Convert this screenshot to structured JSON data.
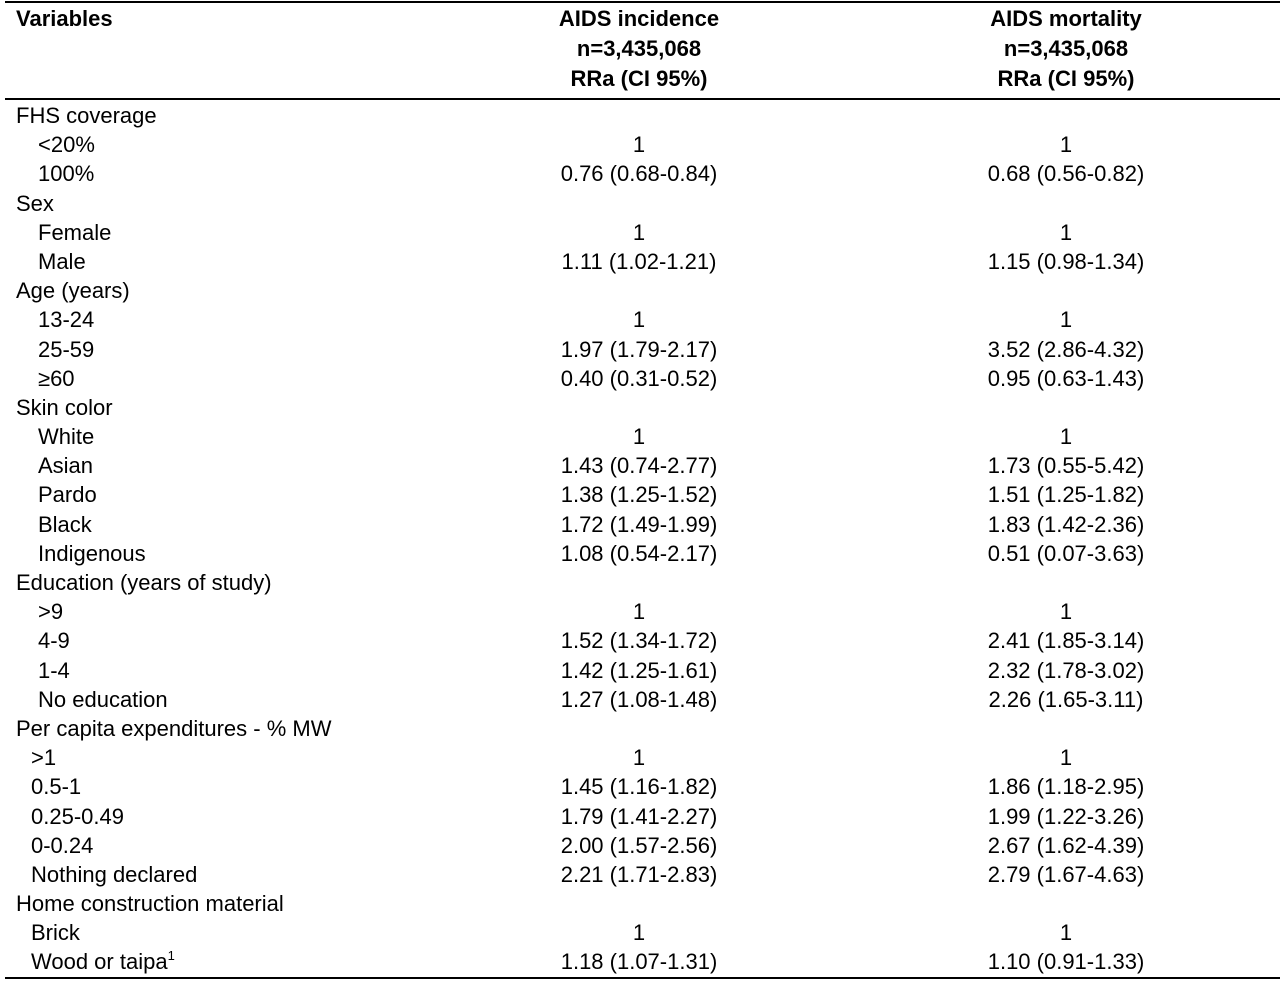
{
  "header": {
    "variables": "Variables",
    "incidence": [
      "AIDS incidence",
      "n=3,435,068",
      "RRa (CI 95%)"
    ],
    "mortality": [
      "AIDS mortality",
      "n=3,435,068",
      "RRa (CI 95%)"
    ]
  },
  "rows": [
    {
      "label": "FHS coverage",
      "level": 0,
      "inc": "",
      "mor": ""
    },
    {
      "label": "<20%",
      "level": 1,
      "inc": "1",
      "mor": "1"
    },
    {
      "label": "100%",
      "level": 1,
      "inc": "0.76 (0.68-0.84)",
      "mor": "0.68 (0.56-0.82)"
    },
    {
      "label": "Sex",
      "level": 0,
      "inc": "",
      "mor": ""
    },
    {
      "label": "Female",
      "level": 1,
      "inc": "1",
      "mor": "1"
    },
    {
      "label": "Male",
      "level": 1,
      "inc": "1.11 (1.02-1.21)",
      "mor": "1.15 (0.98-1.34)"
    },
    {
      "label": "Age (years)",
      "level": 0,
      "inc": "",
      "mor": ""
    },
    {
      "label": "13-24",
      "level": 1,
      "inc": "1",
      "mor": "1"
    },
    {
      "label": "25-59",
      "level": 1,
      "inc": "1.97 (1.79-2.17)",
      "mor": "3.52 (2.86-4.32)"
    },
    {
      "label": "≥60",
      "level": 1,
      "inc": "0.40 (0.31-0.52)",
      "mor": "0.95 (0.63-1.43)"
    },
    {
      "label": "Skin color",
      "level": 0,
      "inc": "",
      "mor": ""
    },
    {
      "label": "White",
      "level": 1,
      "inc": "1",
      "mor": "1"
    },
    {
      "label": "Asian",
      "level": 1,
      "inc": "1.43 (0.74-2.77)",
      "mor": "1.73 (0.55-5.42)"
    },
    {
      "label": "Pardo",
      "level": 1,
      "inc": "1.38 (1.25-1.52)",
      "mor": "1.51 (1.25-1.82)"
    },
    {
      "label": "Black",
      "level": 1,
      "inc": "1.72 (1.49-1.99)",
      "mor": "1.83 (1.42-2.36)"
    },
    {
      "label": "Indigenous",
      "level": 1,
      "inc": "1.08 (0.54-2.17)",
      "mor": "0.51 (0.07-3.63)"
    },
    {
      "label": "Education (years of study)",
      "level": 0,
      "inc": "",
      "mor": ""
    },
    {
      "label": ">9",
      "level": 1,
      "inc": "1",
      "mor": "1"
    },
    {
      "label": "4-9",
      "level": 1,
      "inc": "1.52 (1.34-1.72)",
      "mor": "2.41 (1.85-3.14)"
    },
    {
      "label": "1-4",
      "level": 1,
      "inc": "1.42 (1.25-1.61)",
      "mor": "2.32 (1.78-3.02)"
    },
    {
      "label": "No education",
      "level": 1,
      "inc": "1.27 (1.08-1.48)",
      "mor": "2.26 (1.65-3.11)"
    },
    {
      "label": "Per capita expenditures - % MW",
      "level": 0,
      "inc": "",
      "mor": ""
    },
    {
      "label": ">1",
      "level": 2,
      "inc": "1",
      "mor": "1"
    },
    {
      "label": "0.5-1",
      "level": 2,
      "inc": "1.45 (1.16-1.82)",
      "mor": "1.86 (1.18-2.95)"
    },
    {
      "label": "0.25-0.49",
      "level": 2,
      "inc": "1.79 (1.41-2.27)",
      "mor": "1.99 (1.22-3.26)"
    },
    {
      "label": "0-0.24",
      "level": 2,
      "inc": "2.00 (1.57-2.56)",
      "mor": "2.67 (1.62-4.39)"
    },
    {
      "label": "Nothing declared",
      "level": 2,
      "inc": "2.21 (1.71-2.83)",
      "mor": "2.79 (1.67-4.63)"
    },
    {
      "label": "Home construction material",
      "level": 0,
      "inc": "",
      "mor": ""
    },
    {
      "label": "Brick",
      "level": 2,
      "inc": "1",
      "mor": "1"
    },
    {
      "label": "Wood or taipa",
      "sup": "1",
      "level": 2,
      "inc": "1.18 (1.07-1.31)",
      "mor": "1.10 (0.91-1.33)"
    }
  ]
}
